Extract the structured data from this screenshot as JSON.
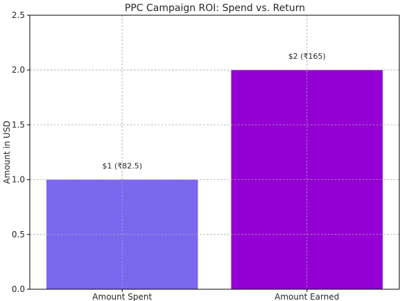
{
  "chart_data": {
    "type": "bar",
    "title": "PPC Campaign ROI: Spend vs. Return",
    "xlabel": "",
    "ylabel": "Amount in USD",
    "categories": [
      "Amount Spent",
      "Amount Earned"
    ],
    "values": [
      1,
      2
    ],
    "data_labels": [
      "$1 (₹82.5)",
      "$2 (₹165)"
    ],
    "colors": [
      "#7b68ee",
      "#9400d3"
    ],
    "ylim": [
      0,
      2.5
    ],
    "yticks": [
      0,
      0.5,
      1,
      1.5,
      2,
      2.5
    ],
    "ytick_labels": [
      "0.0",
      "0.5",
      "1.0",
      "1.5",
      "2.0",
      "2.5"
    ],
    "grid": true
  }
}
